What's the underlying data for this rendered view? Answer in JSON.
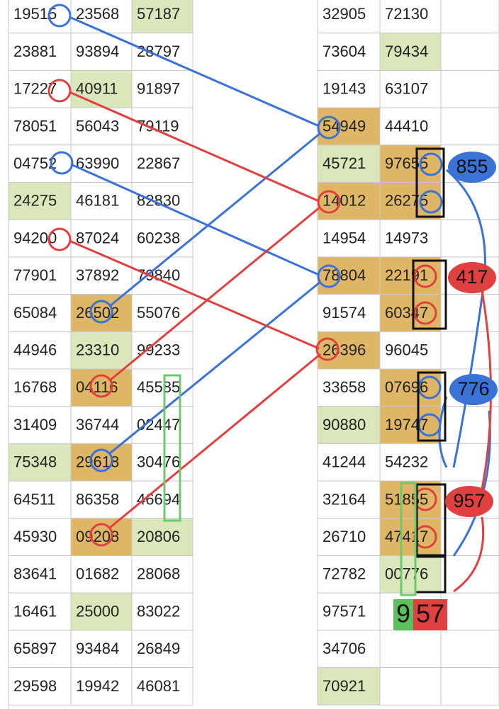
{
  "left_table": {
    "rows": [
      [
        "19515",
        "23568",
        "57187"
      ],
      [
        "23881",
        "93894",
        "28797"
      ],
      [
        "17227",
        "40911",
        "91897"
      ],
      [
        "78051",
        "56043",
        "79119"
      ],
      [
        "04752",
        "63990",
        "22867"
      ],
      [
        "24275",
        "46181",
        "82830"
      ],
      [
        "94200",
        "87024",
        "60238"
      ],
      [
        "77901",
        "37892",
        "79840"
      ],
      [
        "65084",
        "26502",
        "55076"
      ],
      [
        "44946",
        "23310",
        "99233"
      ],
      [
        "16768",
        "04116",
        "45585"
      ],
      [
        "31409",
        "36744",
        "02447"
      ],
      [
        "75348",
        "29618",
        "30476"
      ],
      [
        "64511",
        "86358",
        "46694"
      ],
      [
        "45930",
        "09208",
        "20806"
      ],
      [
        "83641",
        "01682",
        "28068"
      ],
      [
        "16461",
        "25000",
        "83022"
      ],
      [
        "65897",
        "93484",
        "26849"
      ],
      [
        "29598",
        "19942",
        "46081"
      ]
    ]
  },
  "right_table": {
    "rows": [
      [
        "32905",
        "72130"
      ],
      [
        "73604",
        "79434"
      ],
      [
        "19143",
        "63107"
      ],
      [
        "54949",
        "44410"
      ],
      [
        "45721",
        "97655"
      ],
      [
        "14012",
        "26275"
      ],
      [
        "14954",
        "14973"
      ],
      [
        "78804",
        "22191"
      ],
      [
        "91574",
        "60347"
      ],
      [
        "26396",
        "96045"
      ],
      [
        "33658",
        "07696"
      ],
      [
        "90880",
        "19747"
      ],
      [
        "41244",
        "54232"
      ],
      [
        "32164",
        "51855"
      ],
      [
        "26710",
        "47417"
      ],
      [
        "72782",
        "00776"
      ],
      [
        "97571"
      ],
      [
        "34706"
      ],
      [
        "70921"
      ]
    ]
  },
  "annotations": {
    "bubbles": [
      "855",
      "417",
      "776",
      "957"
    ],
    "result": [
      "9",
      "57"
    ]
  }
}
